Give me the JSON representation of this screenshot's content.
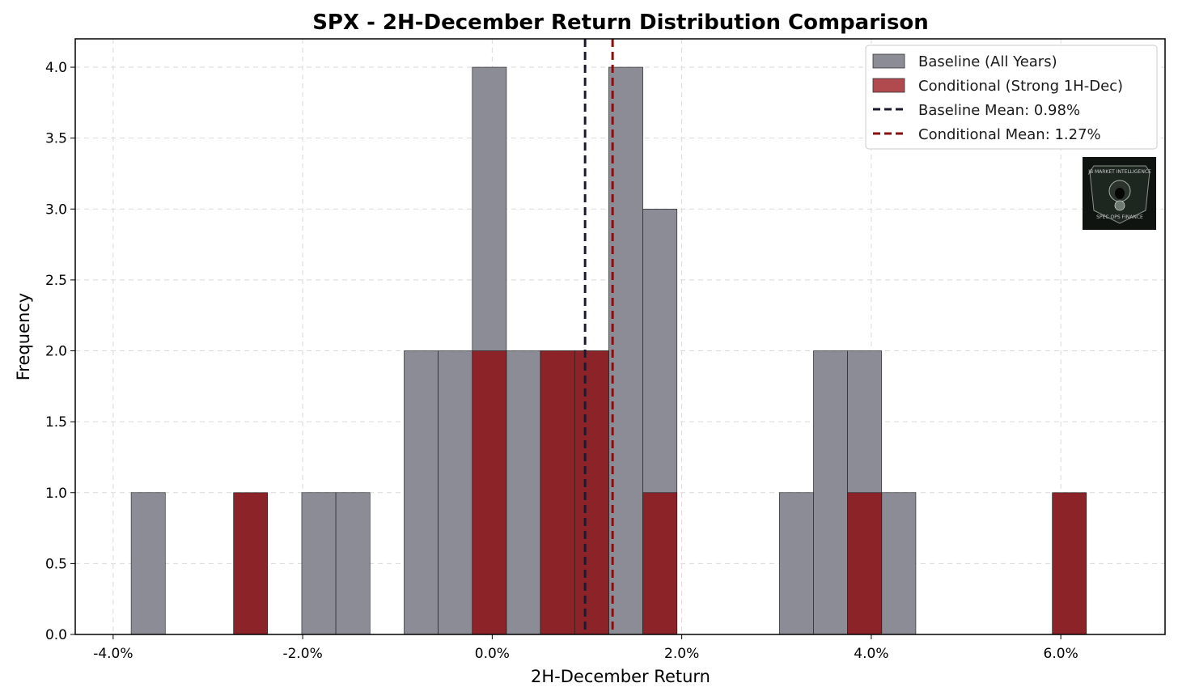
{
  "chart_data": {
    "type": "histogram",
    "title": "SPX - 2H-December Return Distribution Comparison",
    "xlabel": "2H-December Return",
    "ylabel": "Frequency",
    "xlim": [
      -4.4,
      7.1
    ],
    "ylim": [
      0,
      4.2
    ],
    "x_ticks": [
      -4,
      -2,
      0,
      2,
      4,
      6
    ],
    "x_tick_labels": [
      "-4.0%",
      "-2.0%",
      "0.0%",
      "2.0%",
      "4.0%",
      "6.0%"
    ],
    "y_ticks": [
      0,
      0.5,
      1,
      1.5,
      2,
      2.5,
      3,
      3.5,
      4
    ],
    "y_tick_labels": [
      "0.0",
      "0.5",
      "1.0",
      "1.5",
      "2.0",
      "2.5",
      "3.0",
      "3.5",
      "4.0"
    ],
    "grid": true,
    "series": [
      {
        "name": "Baseline (All Years)",
        "color": "#8c8c96",
        "bins": [
          {
            "x0": -3.81,
            "x1": -3.45,
            "count": 1
          },
          {
            "x0": -2.01,
            "x1": -1.65,
            "count": 1
          },
          {
            "x0": -1.65,
            "x1": -1.29,
            "count": 1
          },
          {
            "x0": -0.93,
            "x1": -0.57,
            "count": 2
          },
          {
            "x0": -0.57,
            "x1": -0.21,
            "count": 2
          },
          {
            "x0": -0.21,
            "x1": 0.15,
            "count": 4
          },
          {
            "x0": 0.15,
            "x1": 0.51,
            "count": 2
          },
          {
            "x0": 0.51,
            "x1": 0.87,
            "count": 2
          },
          {
            "x0": 0.87,
            "x1": 1.23,
            "count": 2
          },
          {
            "x0": 1.23,
            "x1": 1.59,
            "count": 4
          },
          {
            "x0": 1.59,
            "x1": 1.95,
            "count": 3
          },
          {
            "x0": 3.03,
            "x1": 3.39,
            "count": 1
          },
          {
            "x0": 3.39,
            "x1": 3.75,
            "count": 2
          },
          {
            "x0": 3.75,
            "x1": 4.11,
            "count": 2
          },
          {
            "x0": 4.11,
            "x1": 4.47,
            "count": 1
          }
        ]
      },
      {
        "name": "Conditional (Strong 1H-Dec)",
        "color": "#8b2329",
        "bins": [
          {
            "x0": -2.73,
            "x1": -2.37,
            "count": 1
          },
          {
            "x0": -0.21,
            "x1": 0.15,
            "count": 2
          },
          {
            "x0": 0.51,
            "x1": 0.87,
            "count": 2
          },
          {
            "x0": 0.87,
            "x1": 1.23,
            "count": 2
          },
          {
            "x0": 1.59,
            "x1": 1.95,
            "count": 1
          },
          {
            "x0": 3.75,
            "x1": 4.11,
            "count": 1
          },
          {
            "x0": 5.91,
            "x1": 6.27,
            "count": 1
          }
        ]
      }
    ],
    "mean_lines": [
      {
        "name": "Baseline Mean: 0.98%",
        "value": 0.98,
        "color": "#1c1a2e"
      },
      {
        "name": "Conditional Mean: 1.27%",
        "value": 1.27,
        "color": "#8b0e0e"
      }
    ],
    "legend": {
      "location": "upper right",
      "entries": [
        {
          "label": "Baseline (All Years)",
          "kind": "patch",
          "color": "#8c8c96"
        },
        {
          "label": "Conditional (Strong 1H-Dec)",
          "kind": "patch",
          "color": "#b04a4f"
        },
        {
          "label": "Baseline Mean: 0.98%",
          "kind": "dashed-line",
          "color": "#1c1a2e"
        },
        {
          "label": "Conditional Mean: 1.27%",
          "kind": "dashed-line",
          "color": "#8b0e0e"
        }
      ]
    },
    "logo": {
      "top_text": "JB MARKET INTELLIGENCE",
      "bottom_text": "SPEC OPS FINANCE"
    }
  }
}
